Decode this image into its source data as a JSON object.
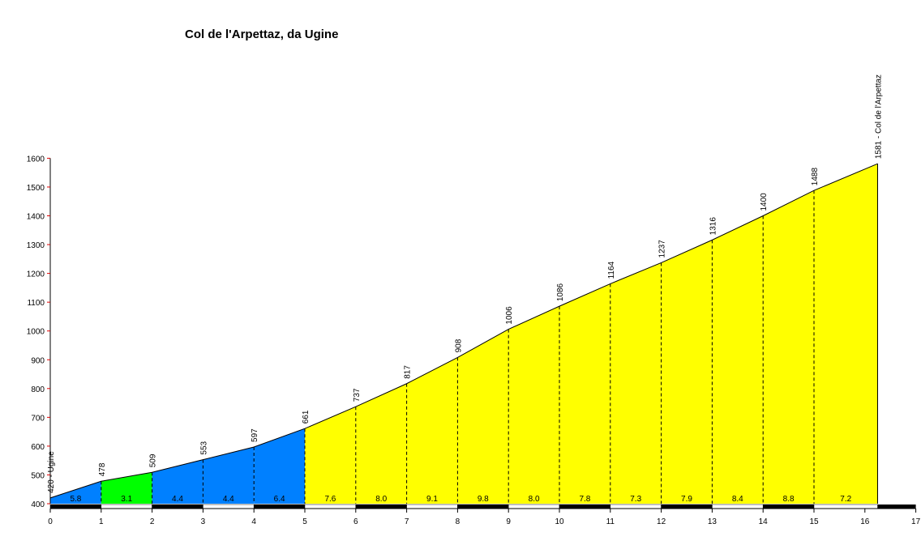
{
  "chart_data": {
    "type": "area",
    "title": "Col de l'Arpettaz, da Ugine",
    "xlabel": "",
    "ylabel": "",
    "xlim": [
      0,
      17
    ],
    "ylim": [
      400,
      1600
    ],
    "x_ticks": [
      0,
      1,
      2,
      3,
      4,
      5,
      6,
      7,
      8,
      9,
      10,
      11,
      12,
      13,
      14,
      15,
      16,
      17
    ],
    "y_ticks": [
      400,
      500,
      600,
      700,
      800,
      900,
      1000,
      1100,
      1200,
      1300,
      1400,
      1500,
      1600
    ],
    "grid": false,
    "profile": {
      "x": [
        0,
        1,
        2,
        3,
        4,
        5,
        6,
        7,
        8,
        9,
        10,
        11,
        12,
        13,
        14,
        15,
        16.25
      ],
      "y": [
        420,
        478,
        509,
        553,
        597,
        661,
        737,
        817,
        908,
        1006,
        1086,
        1164,
        1237,
        1316,
        1400,
        1488,
        1581
      ]
    },
    "point_labels": [
      "420 - Ugine",
      "478",
      "509",
      "553",
      "597",
      "661",
      "737",
      "817",
      "908",
      "1006",
      "1086",
      "1164",
      "1237",
      "1316",
      "1400",
      "1488",
      "1581 - Col de l'Arpettaz"
    ],
    "segments": [
      {
        "from": 0,
        "to": 1,
        "gradient": "5.8",
        "color": "#0080ff"
      },
      {
        "from": 1,
        "to": 2,
        "gradient": "3.1",
        "color": "#00ff00"
      },
      {
        "from": 2,
        "to": 3,
        "gradient": "4.4",
        "color": "#0080ff"
      },
      {
        "from": 3,
        "to": 4,
        "gradient": "4.4",
        "color": "#0080ff"
      },
      {
        "from": 4,
        "to": 5,
        "gradient": "6.4",
        "color": "#0080ff"
      },
      {
        "from": 5,
        "to": 6,
        "gradient": "7.6",
        "color": "#ffff00"
      },
      {
        "from": 6,
        "to": 7,
        "gradient": "8.0",
        "color": "#ffff00"
      },
      {
        "from": 7,
        "to": 8,
        "gradient": "9.1",
        "color": "#ffff00"
      },
      {
        "from": 8,
        "to": 9,
        "gradient": "9.8",
        "color": "#ffff00"
      },
      {
        "from": 9,
        "to": 10,
        "gradient": "8.0",
        "color": "#ffff00"
      },
      {
        "from": 10,
        "to": 11,
        "gradient": "7.8",
        "color": "#ffff00"
      },
      {
        "from": 11,
        "to": 12,
        "gradient": "7.3",
        "color": "#ffff00"
      },
      {
        "from": 12,
        "to": 13,
        "gradient": "7.9",
        "color": "#ffff00"
      },
      {
        "from": 13,
        "to": 14,
        "gradient": "8.4",
        "color": "#ffff00"
      },
      {
        "from": 14,
        "to": 15,
        "gradient": "8.8",
        "color": "#ffff00"
      },
      {
        "from": 15,
        "to": 16.25,
        "gradient": "7.2",
        "color": "#ffff00"
      }
    ]
  }
}
